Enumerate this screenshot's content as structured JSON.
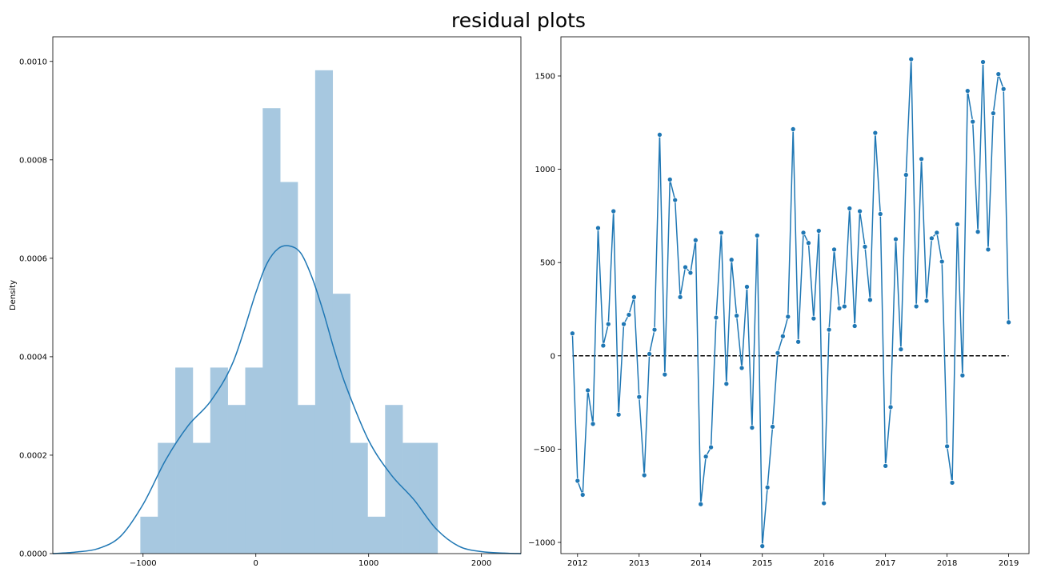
{
  "figure": {
    "title": "residual plots"
  },
  "chart_data": [
    {
      "type": "histogram",
      "ylabel": "Density",
      "xlim": [
        -1800,
        2350
      ],
      "ylim": [
        0,
        0.00105
      ],
      "xticks": [
        -1000,
        0,
        1000,
        2000
      ],
      "xtick_labels": [
        "−1000",
        "0",
        "1000",
        "2000"
      ],
      "yticks": [
        0,
        0.0002,
        0.0004,
        0.0006,
        0.0008,
        0.001
      ],
      "ytick_labels": [
        "0.0000",
        "0.0002",
        "0.0004",
        "0.0006",
        "0.0008",
        "0.0010"
      ],
      "bin_edges": [
        -1024,
        -869,
        -714,
        -559,
        -404,
        -249,
        -94,
        61,
        216,
        371,
        526,
        681,
        836,
        991,
        1146,
        1301,
        1456,
        1611
      ],
      "density": [
        7.5e-05,
        0.000225,
        0.000378,
        0.000225,
        0.000378,
        0.000302,
        0.000378,
        0.000905,
        0.000755,
        0.000302,
        0.000982,
        0.000528,
        0.000225,
        7.5e-05,
        0.000302,
        0.000225,
        0.000225
      ],
      "kde": {
        "x": [
          -1800,
          -1600,
          -1400,
          -1200,
          -1000,
          -800,
          -600,
          -400,
          -200,
          0,
          100,
          200,
          300,
          400,
          500,
          600,
          700,
          800,
          1000,
          1200,
          1400,
          1600,
          1800,
          2000,
          2200,
          2350
        ],
        "y": [
          0.0,
          3e-06,
          1e-05,
          3.5e-05,
          0.0001,
          0.00019,
          0.00026,
          0.00031,
          0.00039,
          0.00053,
          0.00059,
          0.00062,
          0.000625,
          0.00061,
          0.00056,
          0.00049,
          0.00041,
          0.00034,
          0.00023,
          0.00016,
          0.00011,
          5e-05,
          1.5e-05,
          4e-06,
          1e-06,
          0.0
        ]
      },
      "colors": {
        "bar": "#a7c8e0",
        "line": "#1f77b4"
      }
    },
    {
      "type": "line",
      "xlim": [
        2011.73,
        2019.33
      ],
      "ylim": [
        -1060,
        1710
      ],
      "xticks": [
        2012,
        2013,
        2014,
        2015,
        2016,
        2017,
        2018,
        2019
      ],
      "xtick_labels": [
        "2012",
        "2013",
        "2014",
        "2015",
        "2016",
        "2017",
        "2018",
        "2019"
      ],
      "yticks": [
        -1000,
        -500,
        0,
        500,
        1000,
        1500
      ],
      "ytick_labels": [
        "−1000",
        "−500",
        "0",
        "500",
        "1000",
        "1500"
      ],
      "x_start": 2011.917,
      "x_step": 0.08333,
      "series": [
        {
          "values": [
            120,
            -670,
            -745,
            -185,
            -365,
            685,
            55,
            170,
            775,
            -315,
            170,
            220,
            315,
            -220,
            -640,
            10,
            140,
            1185,
            -100,
            945,
            835,
            315,
            475,
            445,
            620,
            -795,
            -540,
            -490,
            205,
            660,
            -150,
            515,
            215,
            -65,
            370,
            -385,
            645,
            -1020,
            -705,
            -380,
            15,
            105,
            210,
            1215,
            75,
            660,
            605,
            200,
            670,
            -790,
            140,
            570,
            255,
            265,
            790,
            160,
            775,
            585,
            300,
            1195,
            760,
            -590,
            -275,
            625,
            35,
            970,
            1590,
            265,
            1055,
            295,
            630,
            660,
            505,
            -485,
            -680,
            705,
            -105,
            1420,
            1255,
            665,
            1575,
            570,
            1300,
            1510,
            1430,
            180
          ]
        }
      ],
      "reference_line": {
        "y": 0
      },
      "colors": {
        "line": "#1f77b4",
        "marker": "#1f77b4",
        "reference": "#000000"
      }
    }
  ]
}
